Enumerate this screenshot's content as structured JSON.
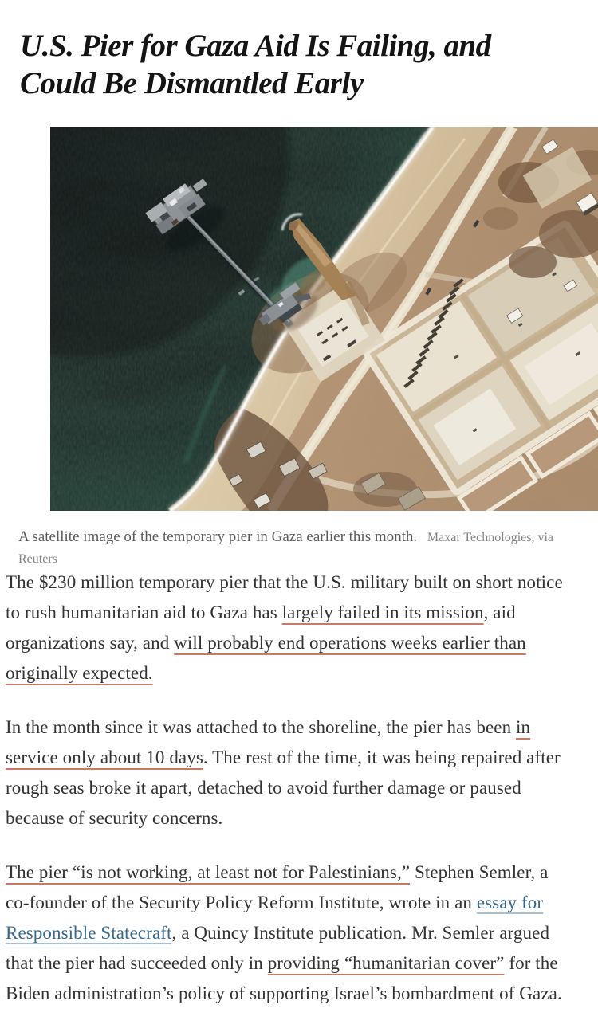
{
  "headline": {
    "lines": [
      "U.S. Pier for Gaza Aid Is Failing, and",
      "Could Be Dismantled Early"
    ]
  },
  "figure": {
    "alt": "Satellite image of the temporary pier in Gaza",
    "caption": "A satellite image of the temporary pier in Gaza earlier this month.",
    "credit": "Maxar Technologies, via Reuters"
  },
  "article": {
    "paragraphs": [
      {
        "segments": [
          {
            "text": "The $230 million temporary pier that the U.S. military built on short notice to rush humanitarian aid to Gaza has "
          },
          {
            "text": "largely failed in its mission",
            "link": "red"
          },
          {
            "text": ", aid organizations say, and "
          },
          {
            "text": "will probably end operations weeks earlier than originally expected.",
            "link": "red"
          }
        ]
      },
      {
        "segments": [
          {
            "text": "In the month since it was attached to the shoreline, the pier has been "
          },
          {
            "text": "in service only about 10 days",
            "link": "red"
          },
          {
            "text": ". The rest of the time, it was being repaired after rough seas broke it apart, detached to avoid further damage or paused because of security concerns."
          }
        ]
      },
      {
        "segments": [
          {
            "text": "The pier “is not working, at least not for Palestinians,”",
            "link": "red"
          },
          {
            "text": " Stephen Semler, a co-founder of the Security Policy Reform Institute, wrote in an "
          },
          {
            "text": "essay for Responsible Statecraft",
            "link": "blue"
          },
          {
            "text": ", a Quincy Institute publication. Mr. Semler argued that the pier had succeeded only in "
          },
          {
            "text": "providing “humanitarian cover”",
            "link": "red"
          },
          {
            "text": " for the Biden administration’s policy of supporting Israel’s bombardment of Gaza."
          }
        ]
      }
    ]
  },
  "colors": {
    "headline": "#141414",
    "body_text": "#333333",
    "link_underline_red": "#c87a66",
    "link_blue": "#35688c",
    "caption_gray": "#5b5b5b",
    "sea_dark": "#111617",
    "sea_green": "#2e6049",
    "sand": "#d9c6a4",
    "land": "#b09070"
  }
}
